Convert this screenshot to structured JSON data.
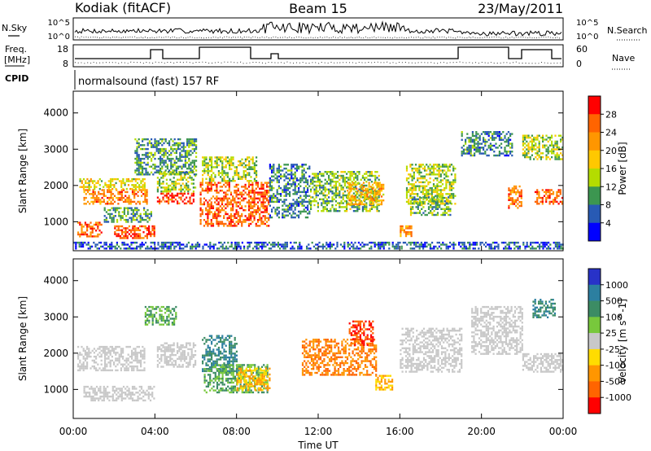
{
  "header": {
    "station": "Kodiak (fitACF)",
    "beam": "Beam 15",
    "date": "23/May/2011"
  },
  "top_panels": {
    "nsky_label": "N.Sky",
    "nsearch_label": "N.Search",
    "noise_ticks": [
      "10^5",
      "10^0"
    ],
    "freq_label_1": "Freq.",
    "freq_label_2": "[MHz]",
    "freq_ticks": [
      "18",
      "8"
    ],
    "nave_label": "Nave",
    "nave_ticks": [
      "60",
      "0"
    ],
    "cpid_label": "CPID",
    "cpid_text": "normalsound (fast) 157 RF"
  },
  "power_colorbar": {
    "title": "Power [dB]",
    "ticks": [
      "28",
      "24",
      "20",
      "16",
      "12",
      "8",
      "4"
    ],
    "colors": [
      "#ff0000",
      "#ff6400",
      "#ff9600",
      "#ffc800",
      "#b4dc00",
      "#3c9650",
      "#285ab4",
      "#0000ff"
    ]
  },
  "velocity_colorbar": {
    "title": "Velocity [m s^-1]",
    "ticks": [
      "1000",
      "500",
      "100",
      "25",
      "-25",
      "-100",
      "-500",
      "-1000"
    ],
    "colors": [
      "#2832c8",
      "#2c7fa0",
      "#3c8c64",
      "#78c83c",
      "#c8c8c8",
      "#ffdc00",
      "#ff9600",
      "#ff6400",
      "#ff0000"
    ]
  },
  "chart_data": [
    {
      "type": "heatmap",
      "name": "power",
      "ylabel": "Slant Range [km]",
      "ylim": [
        200,
        4600
      ],
      "yticks": [
        1000,
        2000,
        3000,
        4000
      ],
      "xlim": [
        0,
        24
      ],
      "x_unit": "hours UT",
      "colorbar_units": "dB",
      "colorbar_range": [
        0,
        32
      ],
      "echo_regions": [
        {
          "x": [
            0.5,
            3.6
          ],
          "y": [
            1500,
            1900
          ],
          "v": 24
        },
        {
          "x": [
            0.3,
            3.5
          ],
          "y": [
            1900,
            2200
          ],
          "v": 16
        },
        {
          "x": [
            0.2,
            1.4
          ],
          "y": [
            600,
            1000
          ],
          "v": 26
        },
        {
          "x": [
            2.0,
            4.0
          ],
          "y": [
            550,
            900
          ],
          "v": 27
        },
        {
          "x": [
            1.5,
            3.8
          ],
          "y": [
            1000,
            1400
          ],
          "v": 10
        },
        {
          "x": [
            4.1,
            5.9
          ],
          "y": [
            1500,
            1800
          ],
          "v": 28
        },
        {
          "x": [
            4.1,
            6.0
          ],
          "y": [
            1850,
            2400
          ],
          "v": 14
        },
        {
          "x": [
            6.2,
            9.6
          ],
          "y": [
            900,
            2100
          ],
          "v": 26
        },
        {
          "x": [
            6.3,
            9.0
          ],
          "y": [
            2100,
            2800
          ],
          "v": 14
        },
        {
          "x": [
            3.0,
            6.0
          ],
          "y": [
            2300,
            3300
          ],
          "v": 10
        },
        {
          "x": [
            9.6,
            11.6
          ],
          "y": [
            1100,
            2600
          ],
          "v": 8
        },
        {
          "x": [
            11.6,
            15.0
          ],
          "y": [
            1300,
            2400
          ],
          "v": 12
        },
        {
          "x": [
            13.4,
            15.2
          ],
          "y": [
            1500,
            2100
          ],
          "v": 20
        },
        {
          "x": [
            16.0,
            16.6
          ],
          "y": [
            600,
            900
          ],
          "v": 22
        },
        {
          "x": [
            16.3,
            18.7
          ],
          "y": [
            1500,
            2600
          ],
          "v": 14
        },
        {
          "x": [
            16.5,
            18.5
          ],
          "y": [
            1200,
            1700
          ],
          "v": 12
        },
        {
          "x": [
            19.0,
            21.5
          ],
          "y": [
            2800,
            3500
          ],
          "v": 8
        },
        {
          "x": [
            21.3,
            22.0
          ],
          "y": [
            1400,
            2000
          ],
          "v": 24
        },
        {
          "x": [
            22.0,
            24.0
          ],
          "y": [
            2700,
            3400
          ],
          "v": 14
        },
        {
          "x": [
            22.6,
            24.0
          ],
          "y": [
            1500,
            1900
          ],
          "v": 26
        },
        {
          "x": [
            0.0,
            24.0
          ],
          "y": [
            250,
            450
          ],
          "v": 6
        }
      ]
    },
    {
      "type": "heatmap",
      "name": "velocity",
      "ylabel": "Slant Range [km]",
      "ylim": [
        200,
        4600
      ],
      "yticks": [
        1000,
        2000,
        3000,
        4000
      ],
      "xlim": [
        0,
        24
      ],
      "xticks": [
        "00:00",
        "04:00",
        "08:00",
        "12:00",
        "16:00",
        "20:00",
        "00:00"
      ],
      "xlabel": "Time UT",
      "colorbar_units": "m s^-1",
      "colorbar_range": [
        -1000,
        1000
      ],
      "echo_regions": [
        {
          "x": [
            0.2,
            3.5
          ],
          "y": [
            1500,
            2200
          ],
          "v": 0
        },
        {
          "x": [
            0.5,
            4.0
          ],
          "y": [
            700,
            1100
          ],
          "v": 0
        },
        {
          "x": [
            4.1,
            6.0
          ],
          "y": [
            1600,
            2300
          ],
          "v": 0
        },
        {
          "x": [
            3.5,
            5.0
          ],
          "y": [
            2800,
            3300
          ],
          "v": 100
        },
        {
          "x": [
            6.3,
            8.0
          ],
          "y": [
            1500,
            2500
          ],
          "v": 500
        },
        {
          "x": [
            6.4,
            9.5
          ],
          "y": [
            900,
            1700
          ],
          "v": 100
        },
        {
          "x": [
            8.0,
            9.6
          ],
          "y": [
            1000,
            1600
          ],
          "v": -100
        },
        {
          "x": [
            11.2,
            14.8
          ],
          "y": [
            1400,
            2400
          ],
          "v": -500
        },
        {
          "x": [
            13.5,
            14.7
          ],
          "y": [
            2200,
            2900
          ],
          "v": -1000
        },
        {
          "x": [
            14.8,
            15.6
          ],
          "y": [
            1000,
            1400
          ],
          "v": -100
        },
        {
          "x": [
            16.0,
            19.0
          ],
          "y": [
            1500,
            2700
          ],
          "v": 0
        },
        {
          "x": [
            19.5,
            22.0
          ],
          "y": [
            2000,
            3300
          ],
          "v": 0
        },
        {
          "x": [
            22.5,
            23.6
          ],
          "y": [
            3000,
            3500
          ],
          "v": 500
        },
        {
          "x": [
            22.0,
            24.0
          ],
          "y": [
            1500,
            2000
          ],
          "v": 0
        }
      ]
    }
  ]
}
